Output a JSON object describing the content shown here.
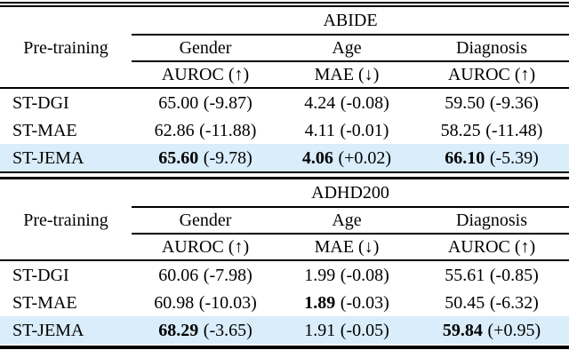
{
  "page": {
    "background_color": "#ffffff",
    "text_color": "#000000",
    "highlight_color": "#d9edfa"
  },
  "tables": [
    {
      "dataset_label": "ABIDE",
      "pretraining_header": "Pre-training",
      "task_headers": [
        "Gender",
        "Age",
        "Diagnosis"
      ],
      "metric_headers": [
        "AUROC (↑)",
        "MAE (↓)",
        "AUROC (↑)"
      ],
      "rows": [
        {
          "label": "ST-DGI",
          "highlight": false,
          "cells": [
            {
              "value": "65.00",
              "delta": "(-9.87)",
              "bold": false
            },
            {
              "value": "4.24",
              "delta": "(-0.08)",
              "bold": false
            },
            {
              "value": "59.50",
              "delta": "(-9.36)",
              "bold": false
            }
          ]
        },
        {
          "label": "ST-MAE",
          "highlight": false,
          "cells": [
            {
              "value": "62.86",
              "delta": "(-11.88)",
              "bold": false
            },
            {
              "value": "4.11",
              "delta": "(-0.01)",
              "bold": false
            },
            {
              "value": "58.25",
              "delta": "(-11.48)",
              "bold": false
            }
          ]
        },
        {
          "label": "ST-JEMA",
          "highlight": true,
          "cells": [
            {
              "value": "65.60",
              "delta": "(-9.78)",
              "bold": true
            },
            {
              "value": "4.06",
              "delta": "(+0.02)",
              "bold": true
            },
            {
              "value": "66.10",
              "delta": "(-5.39)",
              "bold": true
            }
          ]
        }
      ]
    },
    {
      "dataset_label": "ADHD200",
      "pretraining_header": "Pre-training",
      "task_headers": [
        "Gender",
        "Age",
        "Diagnosis"
      ],
      "metric_headers": [
        "AUROC (↑)",
        "MAE (↓)",
        "AUROC (↑)"
      ],
      "rows": [
        {
          "label": "ST-DGI",
          "highlight": false,
          "cells": [
            {
              "value": "60.06",
              "delta": "(-7.98)",
              "bold": false
            },
            {
              "value": "1.99",
              "delta": "(-0.08)",
              "bold": false
            },
            {
              "value": "55.61",
              "delta": "(-0.85)",
              "bold": false
            }
          ]
        },
        {
          "label": "ST-MAE",
          "highlight": false,
          "cells": [
            {
              "value": "60.98",
              "delta": "(-10.03)",
              "bold": false
            },
            {
              "value": "1.89",
              "delta": "(-0.03)",
              "bold": true
            },
            {
              "value": "50.45",
              "delta": "(-6.32)",
              "bold": false
            }
          ]
        },
        {
          "label": "ST-JEMA",
          "highlight": true,
          "cells": [
            {
              "value": "68.29",
              "delta": "(-3.65)",
              "bold": true
            },
            {
              "value": "1.91",
              "delta": "(-0.05)",
              "bold": false
            },
            {
              "value": "59.84",
              "delta": "(+0.95)",
              "bold": true
            }
          ]
        }
      ]
    }
  ]
}
